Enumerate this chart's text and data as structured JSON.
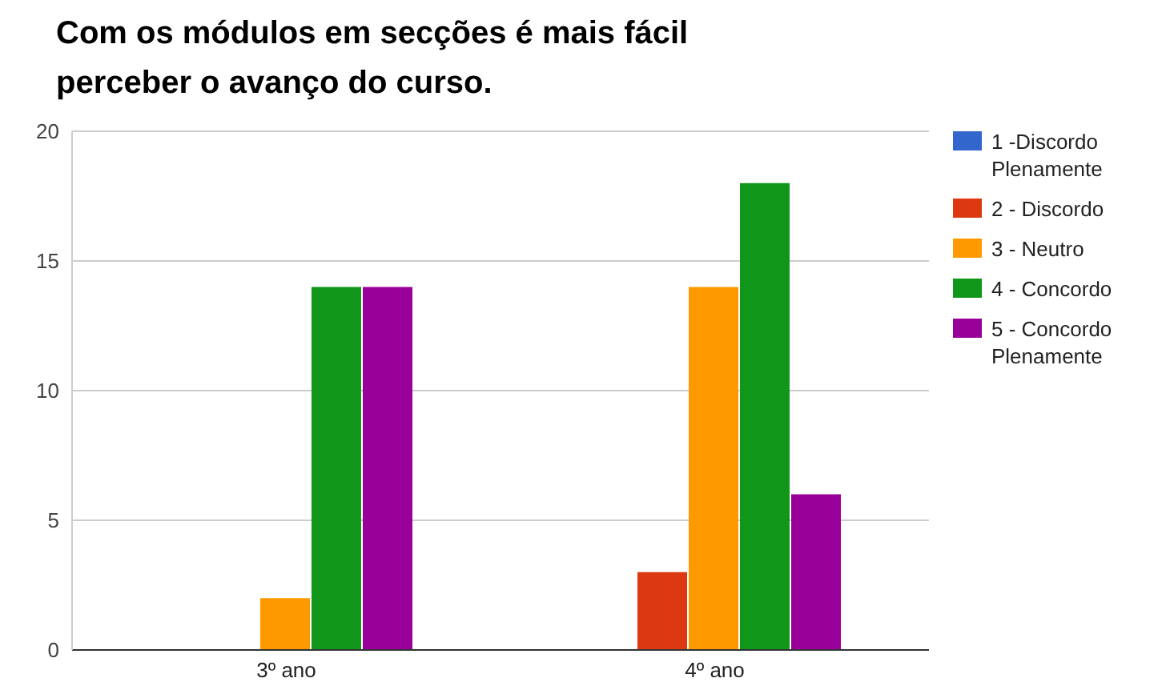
{
  "chart_data": {
    "type": "bar",
    "title": "Com os módulos em secções é mais fácil perceber o avanço do curso.",
    "categories": [
      "3º ano",
      "4º ano"
    ],
    "series": [
      {
        "name": "1 -Discordo Plenamente",
        "color": "#3366cc",
        "values": [
          0,
          0
        ]
      },
      {
        "name": "2 - Discordo",
        "color": "#dc3912",
        "values": [
          0,
          3
        ]
      },
      {
        "name": "3 - Neutro",
        "color": "#ff9900",
        "values": [
          2,
          14
        ]
      },
      {
        "name": "4 - Concordo",
        "color": "#109618",
        "values": [
          14,
          18
        ]
      },
      {
        "name": "5 - Concordo Plenamente",
        "color": "#990099",
        "values": [
          14,
          6
        ]
      }
    ],
    "ylim": [
      0,
      20
    ],
    "yticks": [
      0,
      5,
      10,
      15,
      20
    ],
    "grid": "y",
    "legend": "right"
  }
}
